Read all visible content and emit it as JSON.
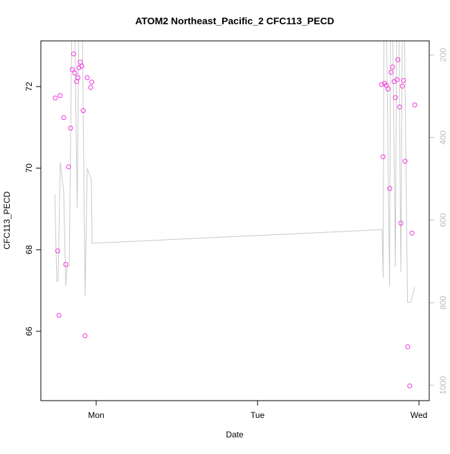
{
  "chart_data": {
    "type": "scatter",
    "title": "ATOM2 Northeast_Pacific_2 CFC113_PECD",
    "xlabel": "Date",
    "ylabel": "CFC113_PECD",
    "x_ticks": [
      "Mon",
      "Tue",
      "Wed"
    ],
    "xlim": [
      "Sun 15:46",
      "Wed 01:32"
    ],
    "ylim": [
      64.3,
      73.12
    ],
    "y_ticks": [
      66,
      68,
      70,
      72
    ],
    "y2lim_reversed": [
      166,
      1037
    ],
    "y2_ticks": [
      200,
      400,
      600,
      800,
      1000
    ],
    "grid": false,
    "point_color": "#f530e0",
    "line_color": "#c8c8c8",
    "y2_tick_color": "#bdbdbd",
    "points": [
      [
        "Sun 17:55",
        71.72
      ],
      [
        "Sun 18:16",
        67.97
      ],
      [
        "Sun 18:28",
        66.39
      ],
      [
        "Sun 18:39",
        71.78
      ],
      [
        "Sun 19:10",
        71.24
      ],
      [
        "Sun 19:28",
        67.64
      ],
      [
        "Sun 19:53",
        70.03
      ],
      [
        "Sun 20:11",
        70.98
      ],
      [
        "Sun 20:26",
        72.42
      ],
      [
        "Sun 20:38",
        72.8
      ],
      [
        "Sun 20:50",
        72.33
      ],
      [
        "Sun 21:05",
        72.12
      ],
      [
        "Sun 21:17",
        72.22
      ],
      [
        "Sun 21:25",
        72.46
      ],
      [
        "Sun 21:38",
        72.6
      ],
      [
        "Sun 21:52",
        72.5
      ],
      [
        "Sun 22:04",
        71.41
      ],
      [
        "Sun 22:21",
        65.89
      ],
      [
        "Sun 22:40",
        72.22
      ],
      [
        "Sun 23:11",
        71.98
      ],
      [
        "Sun 23:21",
        72.11
      ],
      [
        "Tue 18:26",
        72.05
      ],
      [
        "Tue 18:40",
        70.28
      ],
      [
        "Tue 18:55",
        72.08
      ],
      [
        "Tue 19:10",
        72.03
      ],
      [
        "Tue 19:24",
        71.94
      ],
      [
        "Tue 19:40",
        69.5
      ],
      [
        "Tue 19:51",
        72.35
      ],
      [
        "Tue 20:05",
        72.48
      ],
      [
        "Tue 20:18",
        72.12
      ],
      [
        "Tue 20:30",
        71.73
      ],
      [
        "Tue 20:44",
        72.17
      ],
      [
        "Tue 20:53",
        72.66
      ],
      [
        "Tue 21:07",
        71.5
      ],
      [
        "Tue 21:19",
        68.65
      ],
      [
        "Tue 21:32",
        72.01
      ],
      [
        "Tue 21:42",
        72.15
      ],
      [
        "Tue 21:56",
        70.17
      ],
      [
        "Tue 22:19",
        65.62
      ],
      [
        "Tue 22:38",
        64.66
      ],
      [
        "Tue 22:58",
        68.41
      ],
      [
        "Tue 23:23",
        71.55
      ]
    ],
    "pressure_line": [
      [
        "Sun 17:51",
        537
      ],
      [
        "Sun 18:08",
        748
      ],
      [
        "Sun 18:20",
        748
      ],
      [
        "Sun 18:39",
        460
      ],
      [
        "Sun 19:10",
        530
      ],
      [
        "Sun 19:28",
        760
      ],
      [
        "Sun 19:40",
        713
      ],
      [
        "Sun 19:59",
        711
      ],
      [
        "Sun 20:23",
        120
      ],
      [
        "Sun 20:49",
        150
      ],
      [
        "Sun 21:11",
        571
      ],
      [
        "Sun 21:25",
        120
      ],
      [
        "Sun 21:56",
        130
      ],
      [
        "Sun 22:21",
        784
      ],
      [
        "Sun 22:40",
        475
      ],
      [
        "Sun 23:17",
        502
      ],
      [
        "Sun 23:23",
        656
      ],
      [
        "Tue 18:31",
        623
      ],
      [
        "Tue 18:41",
        740
      ],
      [
        "Tue 18:48",
        120
      ],
      [
        "Tue 19:10",
        120
      ],
      [
        "Tue 19:38",
        760
      ],
      [
        "Tue 19:47",
        120
      ],
      [
        "Tue 20:05",
        120
      ],
      [
        "Tue 20:30",
        713
      ],
      [
        "Tue 20:42",
        120
      ],
      [
        "Tue 21:01",
        120
      ],
      [
        "Tue 21:19",
        725
      ],
      [
        "Tue 21:32",
        120
      ],
      [
        "Tue 21:50",
        120
      ],
      [
        "Tue 22:18",
        799
      ],
      [
        "Tue 22:46",
        799
      ],
      [
        "Tue 23:23",
        762
      ]
    ]
  }
}
